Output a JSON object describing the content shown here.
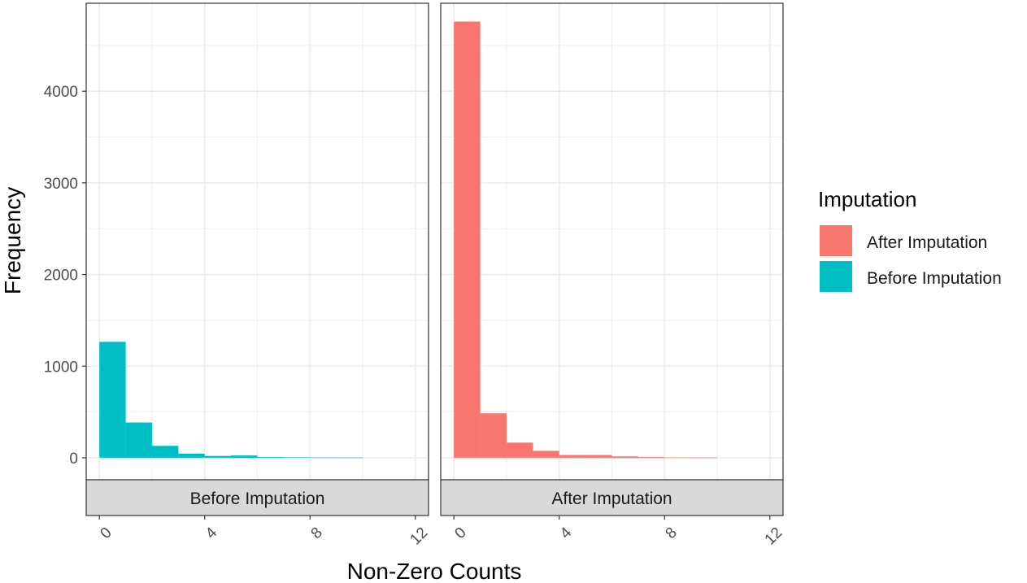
{
  "chart_data": {
    "type": "bar",
    "xlabel": "Non-Zero Counts",
    "ylabel": "Frequency",
    "x_ticks": [
      0,
      4,
      8,
      12
    ],
    "y_ticks": [
      0,
      1000,
      2000,
      3000,
      4000
    ],
    "xlim": [
      -0.5,
      12.5
    ],
    "ylim": [
      -240,
      4960
    ],
    "bin_width": 1,
    "bin_starts": [
      0,
      1,
      2,
      3,
      4,
      5,
      6,
      7,
      8,
      9,
      10,
      11
    ],
    "grid": true,
    "legend_position": "right",
    "legend": {
      "title": "Imputation",
      "entries": [
        {
          "label": "After Imputation",
          "color": "#F8766D"
        },
        {
          "label": "Before Imputation",
          "color": "#00BFC4"
        }
      ]
    },
    "panels": [
      {
        "strip": "Before Imputation",
        "color": "#00BFC4",
        "values": [
          1265,
          385,
          130,
          45,
          20,
          25,
          8,
          5,
          3,
          2,
          0,
          0
        ]
      },
      {
        "strip": "After Imputation",
        "color": "#F8766D",
        "values": [
          4760,
          485,
          165,
          75,
          30,
          30,
          15,
          8,
          3,
          2,
          0,
          0
        ]
      }
    ]
  }
}
